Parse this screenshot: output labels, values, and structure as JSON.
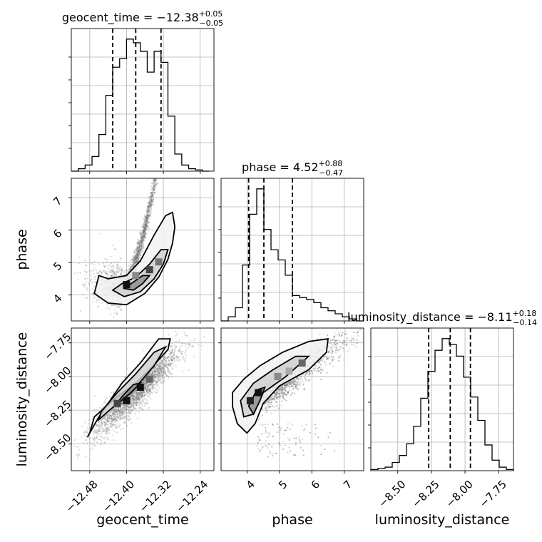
{
  "chart_data": {
    "type": "corner",
    "parameters": [
      "geocent_time",
      "phase",
      "luminosity_distance"
    ],
    "axis_labels": [
      "geocent_time",
      "phase",
      "luminosity_distance"
    ],
    "ranges": {
      "geocent_time": [
        -12.52,
        -12.21
      ],
      "phase": [
        3.2,
        7.6
      ],
      "luminosity_distance": [
        -8.7,
        -7.64
      ]
    },
    "ticks": {
      "geocent_time": [
        -12.48,
        -12.4,
        -12.32,
        -12.24
      ],
      "phase": [
        4,
        5,
        6,
        7
      ],
      "luminosity_distance": [
        -8.5,
        -8.25,
        -8.0,
        -7.75
      ]
    },
    "tick_labels": {
      "geocent_time": [
        "−12.48",
        "−12.40",
        "−12.32",
        "−12.24"
      ],
      "phase": [
        "4",
        "5",
        "6",
        "7"
      ],
      "luminosity_distance": [
        "−8.50",
        "−8.25",
        "−8.00",
        "−7.75"
      ]
    },
    "titles": [
      {
        "param": "geocent_time",
        "prefix": "geocent_time = ",
        "median": "−12.38",
        "plus": "+0.05",
        "minus": "−0.05"
      },
      {
        "param": "phase",
        "prefix": "phase = ",
        "median": "4.52",
        "plus": "+0.88",
        "minus": "−0.47"
      },
      {
        "param": "luminosity_distance",
        "prefix": "luminosity_distance = ",
        "median": "−8.11",
        "plus": "+0.18",
        "minus": "−0.14"
      }
    ],
    "quantiles": {
      "geocent_time": [
        -12.43,
        -12.38,
        -12.325
      ],
      "phase": [
        4.05,
        4.52,
        5.4
      ],
      "luminosity_distance": [
        -8.27,
        -8.11,
        -7.96
      ]
    },
    "histograms": {
      "geocent_time": {
        "edges": [
          -12.52,
          -12.505,
          -12.49,
          -12.475,
          -12.46,
          -12.445,
          -12.43,
          -12.415,
          -12.4,
          -12.385,
          -12.37,
          -12.355,
          -12.34,
          -12.325,
          -12.31,
          -12.295,
          -12.28,
          -12.265,
          -12.25,
          -12.235,
          -12.22
        ],
        "counts": [
          0,
          2,
          5,
          12,
          30,
          62,
          85,
          92,
          108,
          105,
          98,
          81,
          98,
          89,
          45,
          14,
          5,
          2,
          1,
          0
        ]
      },
      "phase": {
        "edges": [
          3.2,
          3.42,
          3.64,
          3.86,
          4.08,
          4.3,
          4.52,
          4.74,
          4.96,
          5.18,
          5.4,
          5.62,
          5.84,
          6.06,
          6.28,
          6.5,
          6.72,
          6.94,
          7.16,
          7.38,
          7.6
        ],
        "counts": [
          0,
          4,
          13,
          55,
          105,
          130,
          90,
          70,
          60,
          45,
          25,
          23,
          21,
          18,
          13,
          10,
          7,
          4,
          2,
          0
        ]
      },
      "luminosity_distance": {
        "edges": [
          -8.7,
          -8.647,
          -8.594,
          -8.541,
          -8.488,
          -8.435,
          -8.382,
          -8.329,
          -8.276,
          -8.223,
          -8.17,
          -8.117,
          -8.064,
          -8.011,
          -7.958,
          -7.905,
          -7.852,
          -7.799,
          -7.746,
          -7.693,
          -7.64
        ],
        "counts": [
          1,
          2,
          3,
          7,
          13,
          23,
          38,
          62,
          85,
          103,
          113,
          108,
          98,
          80,
          63,
          43,
          22,
          9,
          3,
          1
        ]
      }
    },
    "grid": true
  }
}
